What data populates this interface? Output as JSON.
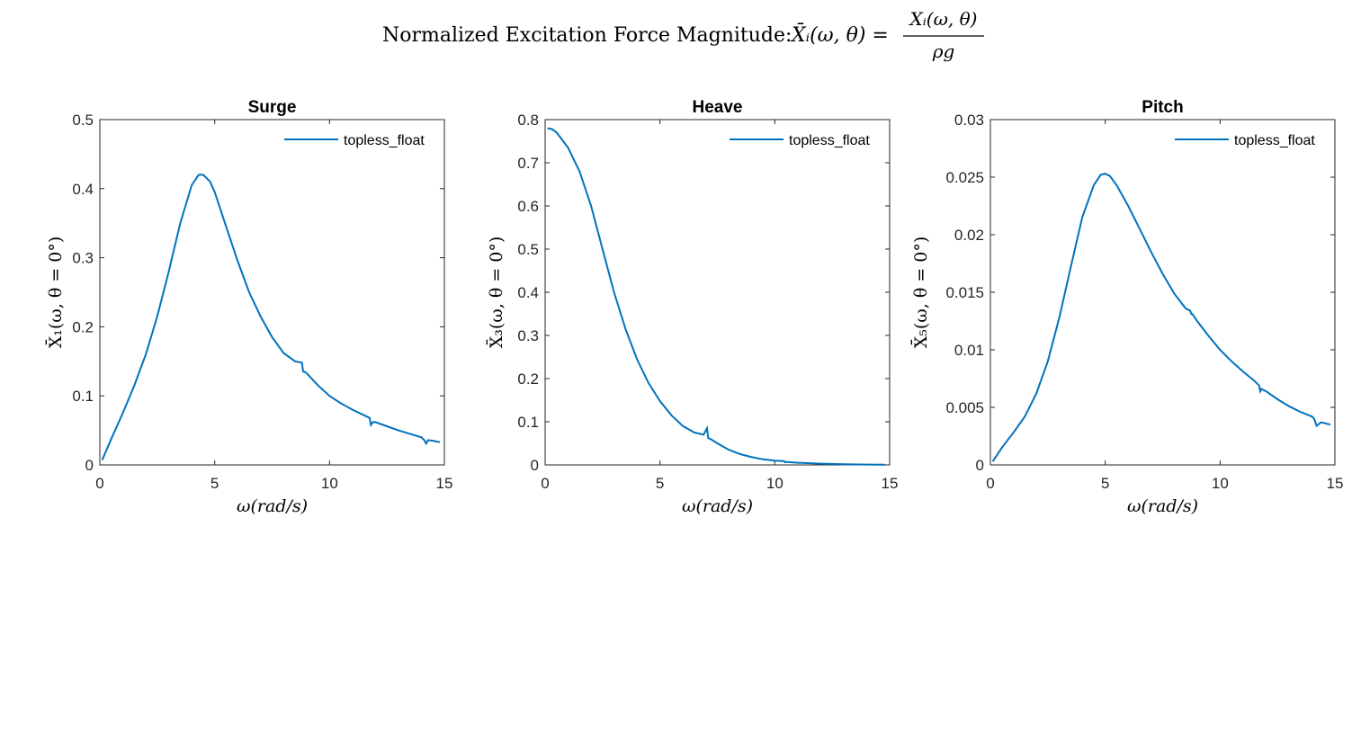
{
  "figure": {
    "suptitle_prefix": "Normalized Excitation Force Magnitude:",
    "suptitle_lhs": "X̄ᵢ(ω, θ) =",
    "suptitle_num": "Xᵢ(ω, θ)",
    "suptitle_den": "ρg"
  },
  "colors": {
    "line": "#0072BD",
    "axis": "#262626"
  },
  "chart_data": [
    {
      "type": "line",
      "title": "Surge",
      "xlabel": "ω(rad/s)",
      "ylabel": "X̄₁(ω, θ = 0°)",
      "xlim": [
        0,
        15
      ],
      "ylim": [
        0,
        0.5
      ],
      "xticks": [
        0,
        5,
        10,
        15
      ],
      "yticks": [
        0,
        0.1,
        0.2,
        0.3,
        0.4,
        0.5
      ],
      "xtick_labels": [
        "0",
        "5",
        "10",
        "15"
      ],
      "ytick_labels": [
        "0",
        "0.1",
        "0.2",
        "0.3",
        "0.4",
        "0.5"
      ],
      "legend": "top-right",
      "series": [
        {
          "name": "topless_float",
          "x": [
            0.1,
            0.5,
            1.0,
            1.5,
            2.0,
            2.5,
            3.0,
            3.5,
            4.0,
            4.3,
            4.5,
            4.8,
            5.0,
            5.5,
            6.0,
            6.5,
            7.0,
            7.5,
            8.0,
            8.5,
            8.8,
            8.85,
            8.9,
            9.0,
            9.5,
            10.0,
            10.5,
            11.0,
            11.5,
            11.75,
            11.8,
            11.9,
            12.0,
            12.5,
            13.0,
            13.5,
            14.0,
            14.15,
            14.2,
            14.3,
            14.5,
            14.8
          ],
          "y": [
            0.007,
            0.038,
            0.075,
            0.115,
            0.16,
            0.215,
            0.28,
            0.35,
            0.405,
            0.42,
            0.42,
            0.41,
            0.395,
            0.345,
            0.295,
            0.25,
            0.215,
            0.185,
            0.162,
            0.15,
            0.148,
            0.135,
            0.135,
            0.133,
            0.115,
            0.1,
            0.089,
            0.08,
            0.072,
            0.068,
            0.058,
            0.062,
            0.062,
            0.056,
            0.05,
            0.045,
            0.04,
            0.035,
            0.031,
            0.036,
            0.035,
            0.033
          ]
        }
      ]
    },
    {
      "type": "line",
      "title": "Heave",
      "xlabel": "ω(rad/s)",
      "ylabel": "X̄₃(ω, θ = 0°)",
      "xlim": [
        0,
        15
      ],
      "ylim": [
        0,
        0.8
      ],
      "xticks": [
        0,
        5,
        10,
        15
      ],
      "yticks": [
        0,
        0.1,
        0.2,
        0.3,
        0.4,
        0.5,
        0.6,
        0.7,
        0.8
      ],
      "xtick_labels": [
        "0",
        "5",
        "10",
        "15"
      ],
      "ytick_labels": [
        "0",
        "0.1",
        "0.2",
        "0.3",
        "0.4",
        "0.5",
        "0.6",
        "0.7",
        "0.8"
      ],
      "legend": "top-right",
      "series": [
        {
          "name": "topless_float",
          "x": [
            0.1,
            0.3,
            0.5,
            1.0,
            1.5,
            2.0,
            2.5,
            3.0,
            3.5,
            4.0,
            4.5,
            5.0,
            5.5,
            6.0,
            6.5,
            6.9,
            7.05,
            7.1,
            7.2,
            7.5,
            8.0,
            8.5,
            9.0,
            9.5,
            10.0,
            10.4,
            10.45,
            10.5,
            11.0,
            12.0,
            13.0,
            14.0,
            14.8
          ],
          "y": [
            0.78,
            0.778,
            0.77,
            0.735,
            0.68,
            0.6,
            0.5,
            0.4,
            0.315,
            0.245,
            0.19,
            0.148,
            0.115,
            0.09,
            0.075,
            0.07,
            0.085,
            0.062,
            0.06,
            0.05,
            0.035,
            0.025,
            0.018,
            0.013,
            0.01,
            0.009,
            0.006,
            0.007,
            0.005,
            0.003,
            0.0015,
            0.0008,
            0.0005
          ]
        }
      ]
    },
    {
      "type": "line",
      "title": "Pitch",
      "xlabel": "ω(rad/s)",
      "ylabel": "X̄₅(ω, θ = 0°)",
      "xlim": [
        0,
        15
      ],
      "ylim": [
        0,
        0.03
      ],
      "xticks": [
        0,
        5,
        10,
        15
      ],
      "yticks": [
        0,
        0.005,
        0.01,
        0.015,
        0.02,
        0.025,
        0.03
      ],
      "xtick_labels": [
        "0",
        "5",
        "10",
        "15"
      ],
      "ytick_labels": [
        "0",
        "0.005",
        "0.01",
        "0.015",
        "0.02",
        "0.025",
        "0.03"
      ],
      "legend": "top-right",
      "series": [
        {
          "name": "topless_float",
          "x": [
            0.1,
            0.5,
            1.0,
            1.5,
            2.0,
            2.5,
            3.0,
            3.5,
            4.0,
            4.5,
            4.8,
            5.0,
            5.2,
            5.5,
            6.0,
            6.5,
            7.0,
            7.5,
            8.0,
            8.5,
            8.7,
            8.75,
            8.8,
            9.0,
            9.5,
            10.0,
            10.5,
            11.0,
            11.5,
            11.7,
            11.75,
            11.8,
            12.0,
            12.5,
            13.0,
            13.5,
            14.0,
            14.1,
            14.2,
            14.4,
            14.8
          ],
          "y": [
            0.0003,
            0.0015,
            0.0028,
            0.0042,
            0.0062,
            0.009,
            0.0128,
            0.0172,
            0.0215,
            0.0243,
            0.0252,
            0.0253,
            0.0251,
            0.0243,
            0.0225,
            0.0205,
            0.0185,
            0.0166,
            0.0149,
            0.0136,
            0.0134,
            0.0131,
            0.0131,
            0.0125,
            0.0112,
            0.01,
            0.009,
            0.0081,
            0.0073,
            0.0069,
            0.0064,
            0.0066,
            0.0064,
            0.0057,
            0.0051,
            0.0046,
            0.0042,
            0.004,
            0.0034,
            0.0037,
            0.0035
          ]
        }
      ]
    }
  ]
}
